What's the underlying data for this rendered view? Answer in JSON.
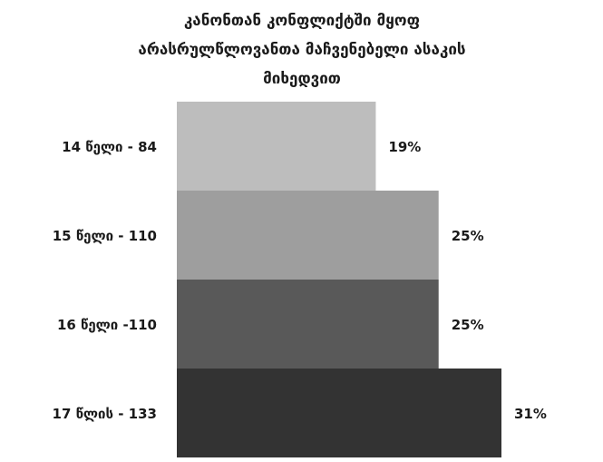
{
  "chart_data": {
    "type": "bar",
    "orientation": "horizontal",
    "title_lines": [
      "კანონთან კონფლიქტში მყოფ",
      "არასრულწლოვანთა მაჩვენებელი ასაკის",
      "მიხედვით"
    ],
    "categories": [
      "14 წელი - 84",
      "15 წელი - 110",
      "16 წელი -110",
      "17 წლის - 133"
    ],
    "values": [
      19,
      25,
      25,
      31
    ],
    "value_labels": [
      "19%",
      "25%",
      "25%",
      "31%"
    ],
    "colors": [
      "#bdbdbd",
      "#9e9e9e",
      "#595959",
      "#333333"
    ],
    "xlim": [
      0,
      31
    ],
    "grid": false,
    "legend": "none"
  }
}
